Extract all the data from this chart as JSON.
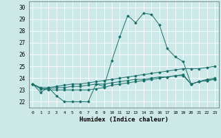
{
  "xlabel": "Humidex (Indice chaleur)",
  "background_color": "#cce8e8",
  "grid_color": "#ffffff",
  "line_color": "#1a6e6a",
  "xlim": [
    -0.5,
    23.5
  ],
  "ylim": [
    21.5,
    30.5
  ],
  "xticks": [
    0,
    1,
    2,
    3,
    4,
    5,
    6,
    7,
    8,
    9,
    10,
    11,
    12,
    13,
    14,
    15,
    16,
    17,
    18,
    19,
    20,
    21,
    22,
    23
  ],
  "yticks": [
    22,
    23,
    24,
    25,
    26,
    27,
    28,
    29,
    30
  ],
  "series": [
    [
      23.5,
      22.8,
      23.2,
      22.5,
      22.0,
      22.0,
      22.0,
      22.0,
      23.5,
      23.3,
      25.5,
      27.5,
      29.3,
      28.7,
      29.5,
      29.4,
      28.5,
      26.5,
      25.8,
      25.4,
      23.5,
      23.7,
      23.9,
      24.0
    ],
    [
      23.5,
      23.2,
      23.2,
      23.3,
      23.4,
      23.5,
      23.5,
      23.6,
      23.7,
      23.8,
      23.9,
      24.0,
      24.1,
      24.2,
      24.3,
      24.4,
      24.5,
      24.6,
      24.7,
      24.8,
      24.8,
      24.8,
      24.9,
      25.0
    ],
    [
      23.5,
      23.1,
      23.1,
      23.2,
      23.2,
      23.3,
      23.3,
      23.4,
      23.5,
      23.5,
      23.6,
      23.7,
      23.8,
      23.9,
      23.9,
      24.0,
      24.1,
      24.1,
      24.2,
      24.3,
      23.5,
      23.7,
      23.8,
      23.9
    ],
    [
      23.5,
      23.1,
      23.0,
      23.0,
      23.0,
      23.0,
      23.0,
      23.0,
      23.1,
      23.2,
      23.4,
      23.5,
      23.6,
      23.7,
      23.8,
      23.9,
      24.0,
      24.1,
      24.2,
      24.2,
      23.5,
      23.7,
      23.8,
      23.9
    ]
  ]
}
